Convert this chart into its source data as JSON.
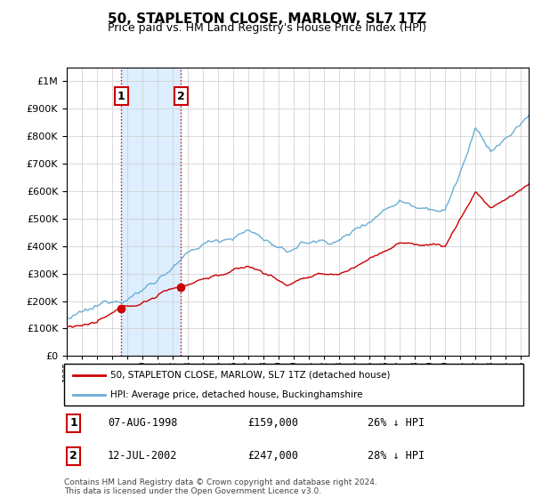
{
  "title": "50, STAPLETON CLOSE, MARLOW, SL7 1TZ",
  "subtitle": "Price paid vs. HM Land Registry's House Price Index (HPI)",
  "sale1_date": "07-AUG-1998",
  "sale1_price": 159000,
  "sale1_pct": "26% ↓ HPI",
  "sale1_year": 1998.6,
  "sale2_date": "12-JUL-2002",
  "sale2_price": 247000,
  "sale2_pct": "28% ↓ HPI",
  "sale2_year": 2002.53,
  "legend_line1": "50, STAPLETON CLOSE, MARLOW, SL7 1TZ (detached house)",
  "legend_line2": "HPI: Average price, detached house, Buckinghamshire",
  "footer": "Contains HM Land Registry data © Crown copyright and database right 2024.\nThis data is licensed under the Open Government Licence v3.0.",
  "hpi_color": "#6baed6",
  "price_color": "#cc0000",
  "shade_color": "#ddeeff",
  "ylim": [
    0,
    1050000
  ],
  "xlim_start": 1995.0,
  "xlim_end": 2025.5
}
